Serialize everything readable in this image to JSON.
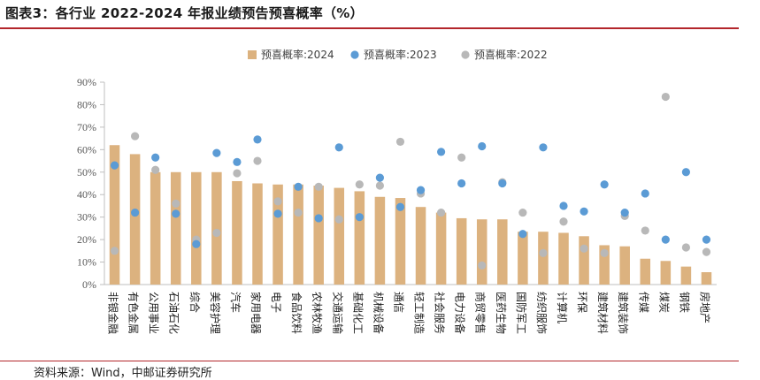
{
  "title": "图表3：各行业 2022-2024 年报业绩预告预喜概率（%）",
  "source": "资料来源：Wind，中邮证券研究所",
  "colors": {
    "bar_2024": "#dcb27f",
    "dot_2023": "#5b9bd5",
    "dot_2022": "#b8b8b8",
    "rule": "#b3262b",
    "axis": "#bfbfbf"
  },
  "chart_data": {
    "type": "bar",
    "title": "",
    "xlabel": "",
    "ylabel": "",
    "ylim": [
      0,
      90
    ],
    "ytick_step": 10,
    "ytick_format": "percent",
    "legend_position": "top",
    "categories": [
      "非银金融",
      "有色金属",
      "公用事业",
      "石油石化",
      "综合",
      "美容护理",
      "汽车",
      "家用电器",
      "电子",
      "食品饮料",
      "农林牧渔",
      "交通运输",
      "基础化工",
      "机械设备",
      "通信",
      "轻工制造",
      "社会服务",
      "电力设备",
      "商贸零售",
      "医药生物",
      "国防军工",
      "纺织服饰",
      "计算机",
      "环保",
      "建筑材料",
      "建筑装饰",
      "传媒",
      "煤炭",
      "钢铁",
      "房地产"
    ],
    "series": [
      {
        "name": "预喜概率:2024",
        "kind": "bar",
        "values": [
          62,
          58,
          50,
          50,
          50,
          50,
          46,
          45,
          44.5,
          44.5,
          44,
          43,
          41.5,
          39,
          38.5,
          34.5,
          32,
          29.5,
          29,
          29,
          23.5,
          23.5,
          23,
          21.5,
          17.5,
          17,
          11.5,
          10.5,
          8,
          5.5
        ]
      },
      {
        "name": "预喜概率:2023",
        "kind": "dot",
        "values": [
          53,
          32,
          56.5,
          31.5,
          18,
          58.5,
          54.5,
          64.5,
          31.5,
          43.5,
          29.5,
          61,
          30,
          47.5,
          34.5,
          42,
          59,
          45,
          61.5,
          45,
          22.5,
          61,
          35,
          32.5,
          44.5,
          32,
          40.5,
          20,
          50,
          20
        ]
      },
      {
        "name": "预喜概率:2022",
        "kind": "dot",
        "values": [
          15,
          66,
          51,
          36,
          20,
          23,
          49.5,
          55,
          37,
          32,
          43.5,
          29,
          44.5,
          44,
          63.5,
          40.5,
          32,
          56.5,
          8.5,
          45.5,
          32,
          14,
          28,
          16,
          14,
          30.5,
          24,
          83.5,
          16.5,
          14.5
        ]
      }
    ]
  }
}
